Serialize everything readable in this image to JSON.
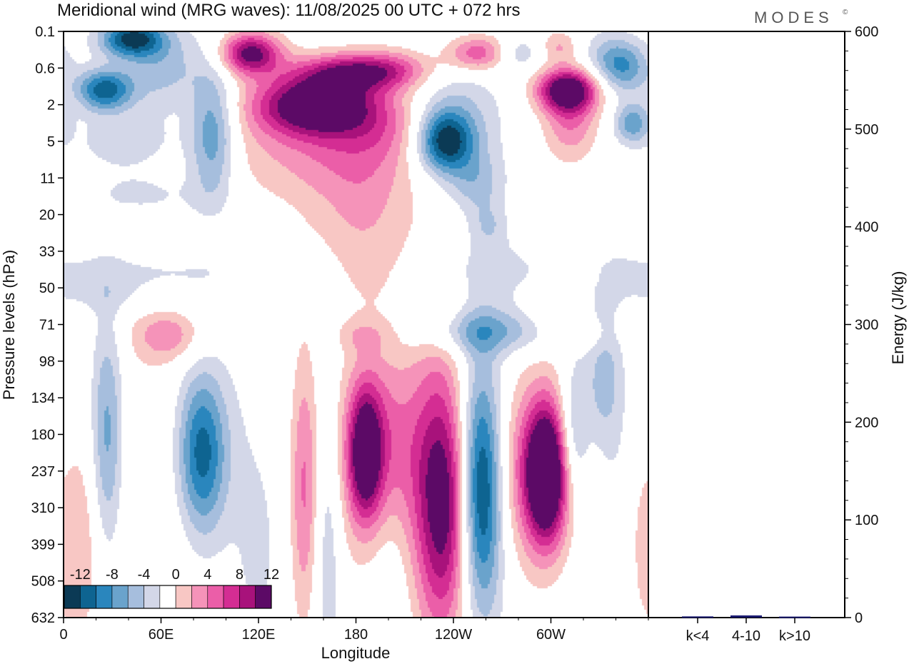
{
  "header": {
    "title": "Meridional wind (MRG waves):  11/08/2025  00 UTC  + 072 hrs",
    "brand": "MODES",
    "brand_mark": "©"
  },
  "chart_data": [
    {
      "type": "heatmap",
      "title": "Meridional wind (MRG waves)",
      "xlabel": "Longitude",
      "ylabel": "Pressure levels (hPa)",
      "x_ticks": [
        "0",
        "60E",
        "120E",
        "180",
        "120W",
        "60W"
      ],
      "x_tick_values": [
        0,
        60,
        120,
        180,
        240,
        300
      ],
      "xlim": [
        0,
        360
      ],
      "y_levels": [
        "0.1",
        "0.6",
        "2",
        "5",
        "11",
        "20",
        "33",
        "50",
        "71",
        "98",
        "134",
        "180",
        "237",
        "310",
        "399",
        "508",
        "632"
      ],
      "y_scale": "level-index",
      "colorbar": {
        "labels": [
          "-12",
          "-8",
          "-4",
          "0",
          "4",
          "8",
          "12"
        ],
        "levels": [
          -14,
          -12,
          -10,
          -8,
          -6,
          -4,
          -2,
          2,
          4,
          6,
          8,
          10,
          12,
          14
        ],
        "colors": [
          "#0b3a55",
          "#0e6491",
          "#2a86bd",
          "#6aa3cc",
          "#a6bedd",
          "#d3d7e8",
          "#ffffff",
          "#f8c7c4",
          "#f593b9",
          "#eb5ea8",
          "#d42d93",
          "#a8127b",
          "#5c0a66"
        ],
        "legend_position": "bottom-left"
      },
      "blobs": [
        {
          "lon": 42,
          "lev": 0.2,
          "a": 14,
          "b": 0.35,
          "value": -12
        },
        {
          "lon": 25,
          "lev": 1.6,
          "a": 12,
          "b": 0.4,
          "value": -11
        },
        {
          "lon": 60,
          "lev": 1.0,
          "a": 18,
          "b": 0.8,
          "value": -5
        },
        {
          "lon": 40,
          "lev": 3.0,
          "a": 28,
          "b": 0.6,
          "value": -3
        },
        {
          "lon": 52,
          "lev": 4.5,
          "a": 30,
          "b": 0.5,
          "value": -2.5
        },
        {
          "lon": 92,
          "lev": 2.8,
          "a": 10,
          "b": 1.3,
          "value": -8
        },
        {
          "lon": 115,
          "lev": 0.6,
          "a": 13,
          "b": 0.4,
          "value": 13
        },
        {
          "lon": 155,
          "lev": 2.0,
          "a": 25,
          "b": 0.55,
          "value": 14
        },
        {
          "lon": 180,
          "lev": 1.1,
          "a": 25,
          "b": 0.35,
          "value": 10
        },
        {
          "lon": 160,
          "lev": 3.0,
          "a": 45,
          "b": 1.2,
          "value": 5
        },
        {
          "lon": 185,
          "lev": 5.0,
          "a": 22,
          "b": 1.6,
          "value": 3.5
        },
        {
          "lon": 200,
          "lev": 2.6,
          "a": 25,
          "b": 0.7,
          "value": 3
        },
        {
          "lon": 205,
          "lev": 1.0,
          "a": 18,
          "b": 0.4,
          "value": 3
        },
        {
          "lon": 235,
          "lev": 3.0,
          "a": 12,
          "b": 0.6,
          "value": -12
        },
        {
          "lon": 240,
          "lev": 2.5,
          "a": 22,
          "b": 1.2,
          "value": -5
        },
        {
          "lon": 255,
          "lev": 4.2,
          "a": 12,
          "b": 0.6,
          "value": -4
        },
        {
          "lon": 262,
          "lev": 5.3,
          "a": 8,
          "b": 0.4,
          "value": -3
        },
        {
          "lon": 255,
          "lev": 0.6,
          "a": 14,
          "b": 0.35,
          "value": 8
        },
        {
          "lon": 310,
          "lev": 1.6,
          "a": 13,
          "b": 0.4,
          "value": 14
        },
        {
          "lon": 312,
          "lev": 2.4,
          "a": 12,
          "b": 0.8,
          "value": 6
        },
        {
          "lon": 305,
          "lev": 0.4,
          "a": 8,
          "b": 0.3,
          "value": 4
        },
        {
          "lon": 345,
          "lev": 1.0,
          "a": 12,
          "b": 0.5,
          "value": -7
        },
        {
          "lon": 350,
          "lev": 2.5,
          "a": 8,
          "b": 0.4,
          "value": -7
        },
        {
          "lon": 335,
          "lev": 0.6,
          "a": 12,
          "b": 0.5,
          "value": -3
        },
        {
          "lon": 280,
          "lev": 0.6,
          "a": 10,
          "b": 0.3,
          "value": -4
        },
        {
          "lon": 320,
          "lev": 5.3,
          "a": 18,
          "b": 0.4,
          "value": 2.5
        },
        {
          "lon": 40,
          "lev": 6.5,
          "a": 55,
          "b": 0.35,
          "value": -2.5
        },
        {
          "lon": 30,
          "lev": 7.2,
          "a": 50,
          "b": 0.35,
          "value": -2.2
        },
        {
          "lon": 265,
          "lev": 6.5,
          "a": 25,
          "b": 0.7,
          "value": -2.5
        },
        {
          "lon": 340,
          "lev": 5.5,
          "a": 15,
          "b": 0.5,
          "value": -2.5
        },
        {
          "lon": 260,
          "lev": 8.2,
          "a": 30,
          "b": 0.45,
          "value": -6
        },
        {
          "lon": 185,
          "lev": 8.3,
          "a": 12,
          "b": 0.3,
          "value": 2.5
        },
        {
          "lon": 300,
          "lev": 7.5,
          "a": 10,
          "b": 0.4,
          "value": 2.5
        },
        {
          "lon": 320,
          "lev": 8.3,
          "a": 12,
          "b": 0.3,
          "value": 2.5
        },
        {
          "lon": 65,
          "lev": 8.3,
          "a": 15,
          "b": 0.5,
          "value": 5
        },
        {
          "lon": 27,
          "lev": 11.0,
          "a": 7,
          "b": 2.3,
          "value": -7
        },
        {
          "lon": 85,
          "lev": 11.5,
          "a": 10,
          "b": 1.5,
          "value": -9
        },
        {
          "lon": 85,
          "lev": 11.5,
          "a": 24,
          "b": 2.2,
          "value": -3
        },
        {
          "lon": 58,
          "lev": 12.0,
          "a": 20,
          "b": 3.5,
          "value": 2.5
        },
        {
          "lon": 8,
          "lev": 14.0,
          "a": 10,
          "b": 2.0,
          "value": 4.5
        },
        {
          "lon": 148,
          "lev": 12.5,
          "a": 6,
          "b": 2.6,
          "value": 6
        },
        {
          "lon": 163,
          "lev": 13.5,
          "a": 6,
          "b": 3.0,
          "value": -4
        },
        {
          "lon": 195,
          "lev": 11.5,
          "a": 20,
          "b": 2.0,
          "value": 8
        },
        {
          "lon": 186,
          "lev": 11.5,
          "a": 7,
          "b": 1.2,
          "value": 12
        },
        {
          "lon": 235,
          "lev": 13.0,
          "a": 12,
          "b": 2.3,
          "value": 11
        },
        {
          "lon": 230,
          "lev": 12.0,
          "a": 12,
          "b": 4.0,
          "value": 3.5
        },
        {
          "lon": 257,
          "lev": 12.5,
          "a": 9,
          "b": 2.2,
          "value": -12
        },
        {
          "lon": 257,
          "lev": 12.5,
          "a": 14,
          "b": 3.0,
          "value": -3
        },
        {
          "lon": 295,
          "lev": 12.0,
          "a": 20,
          "b": 1.8,
          "value": 9
        },
        {
          "lon": 297,
          "lev": 12.1,
          "a": 8,
          "b": 1.2,
          "value": 14
        },
        {
          "lon": 314,
          "lev": 11.0,
          "a": 7,
          "b": 1.4,
          "value": -7
        },
        {
          "lon": 333,
          "lev": 9.5,
          "a": 8,
          "b": 1.3,
          "value": -5
        },
        {
          "lon": 335,
          "lev": 13.5,
          "a": 20,
          "b": 2.5,
          "value": -2.5
        },
        {
          "lon": 200,
          "lev": 14.0,
          "a": 10,
          "b": 2.0,
          "value": -2.2
        },
        {
          "lon": 120,
          "lev": 14.5,
          "a": 10,
          "b": 2.0,
          "value": -2.2
        },
        {
          "lon": 355,
          "lev": 14.0,
          "a": 5,
          "b": 1.5,
          "value": 2.5
        }
      ]
    },
    {
      "type": "bar",
      "ylabel": "Energy (J/kg)",
      "categories": [
        "k<4",
        "4-10",
        "k>10"
      ],
      "values": [
        0.5,
        1.5,
        0.3
      ],
      "ylim": [
        0,
        600
      ],
      "y_ticks": [
        "0",
        "100",
        "200",
        "300",
        "400",
        "500",
        "600"
      ],
      "y_tick_values": [
        0,
        100,
        200,
        300,
        400,
        500,
        600
      ],
      "bar_color": "#1a1a6e"
    }
  ]
}
